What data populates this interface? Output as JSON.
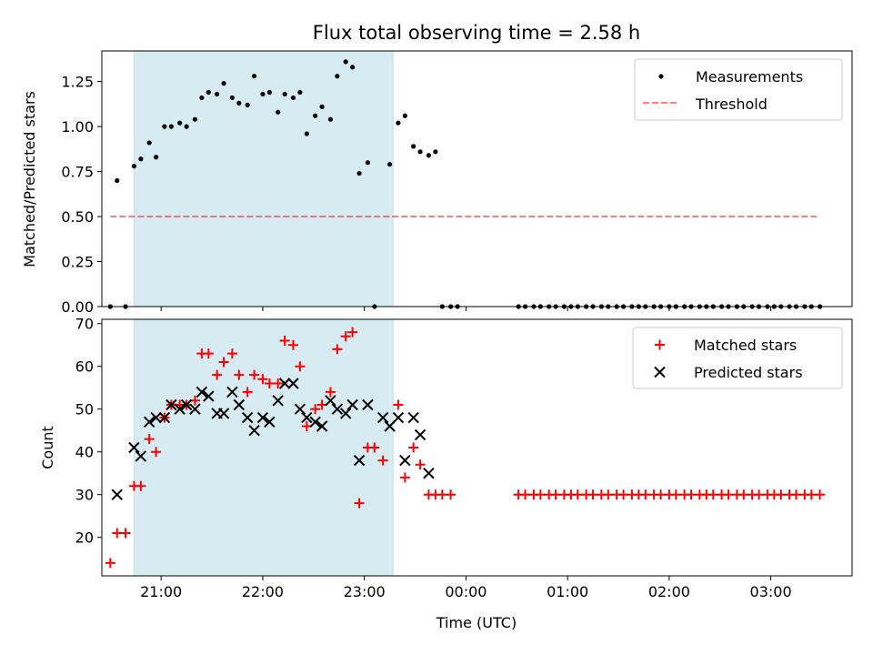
{
  "title": "Flux total observing time = 2.58 h",
  "colors": {
    "span": "#add8e6",
    "measurement": "#000000",
    "threshold": "#ff0000",
    "matched": "#ff0000",
    "predicted": "#000000"
  },
  "chart_data": [
    {
      "type": "scatter",
      "panel": "top",
      "ylabel": "Matched/Predicted stars",
      "xlabel": "",
      "ylim": [
        0,
        1.42
      ],
      "yticks": [
        0.0,
        0.25,
        0.5,
        0.75,
        1.0,
        1.25
      ],
      "ytick_labels": [
        "0.00",
        "0.25",
        "0.50",
        "0.75",
        "1.00",
        "1.25"
      ],
      "xlim": [
        "20:25",
        "27:48"
      ],
      "xticks": [
        "21:00",
        "22:00",
        "23:00",
        "24:00",
        "25:00",
        "26:00",
        "27:00"
      ],
      "shaded_span": {
        "start": "20:44",
        "end": "23:17"
      },
      "legend": {
        "position": "upper right",
        "entries": [
          "Measurements",
          "Threshold"
        ]
      },
      "series": [
        {
          "name": "Measurements",
          "marker": "dot",
          "points": [
            [
              "20:30",
              0.0
            ],
            [
              "20:39",
              0.0
            ],
            [
              "20:34",
              0.7
            ],
            [
              "20:44",
              0.78
            ],
            [
              "20:48",
              0.82
            ],
            [
              "20:53",
              0.91
            ],
            [
              "20:57",
              0.83
            ],
            [
              "21:02",
              1.0
            ],
            [
              "21:06",
              1.0
            ],
            [
              "21:11",
              1.02
            ],
            [
              "21:15",
              1.0
            ],
            [
              "21:20",
              1.04
            ],
            [
              "21:24",
              1.16
            ],
            [
              "21:28",
              1.19
            ],
            [
              "21:33",
              1.18
            ],
            [
              "21:37",
              1.24
            ],
            [
              "21:42",
              1.16
            ],
            [
              "21:46",
              1.13
            ],
            [
              "21:51",
              1.12
            ],
            [
              "21:55",
              1.28
            ],
            [
              "22:00",
              1.18
            ],
            [
              "22:04",
              1.19
            ],
            [
              "22:09",
              1.08
            ],
            [
              "22:13",
              1.18
            ],
            [
              "22:18",
              1.16
            ],
            [
              "22:22",
              1.19
            ],
            [
              "22:26",
              0.96
            ],
            [
              "22:31",
              1.06
            ],
            [
              "22:35",
              1.11
            ],
            [
              "22:40",
              1.04
            ],
            [
              "22:44",
              1.28
            ],
            [
              "22:49",
              1.36
            ],
            [
              "22:53",
              1.33
            ],
            [
              "22:57",
              0.74
            ],
            [
              "23:02",
              0.8
            ],
            [
              "23:06",
              0.0
            ],
            [
              "23:15",
              0.79
            ],
            [
              "23:20",
              1.02
            ],
            [
              "23:24",
              1.06
            ],
            [
              "23:29",
              0.89
            ],
            [
              "23:33",
              0.86
            ],
            [
              "23:38",
              0.84
            ],
            [
              "23:42",
              0.86
            ],
            [
              "23:46",
              0.0
            ],
            [
              "23:51",
              0.0
            ],
            [
              "23:55",
              0.0
            ],
            [
              "24:31",
              0.0
            ],
            [
              "24:35",
              0.0
            ],
            [
              "24:40",
              0.0
            ],
            [
              "24:44",
              0.0
            ],
            [
              "24:49",
              0.0
            ],
            [
              "24:53",
              0.0
            ],
            [
              "24:58",
              0.0
            ],
            [
              "25:02",
              0.0
            ],
            [
              "25:06",
              0.0
            ],
            [
              "25:11",
              0.0
            ],
            [
              "25:15",
              0.0
            ],
            [
              "25:20",
              0.0
            ],
            [
              "25:24",
              0.0
            ],
            [
              "25:29",
              0.0
            ],
            [
              "25:33",
              0.0
            ],
            [
              "25:38",
              0.0
            ],
            [
              "25:42",
              0.0
            ],
            [
              "25:46",
              0.0
            ],
            [
              "25:51",
              0.0
            ],
            [
              "25:55",
              0.0
            ],
            [
              "26:00",
              0.0
            ],
            [
              "26:04",
              0.0
            ],
            [
              "26:09",
              0.0
            ],
            [
              "26:13",
              0.0
            ],
            [
              "26:18",
              0.0
            ],
            [
              "26:22",
              0.0
            ],
            [
              "26:26",
              0.0
            ],
            [
              "26:31",
              0.0
            ],
            [
              "26:35",
              0.0
            ],
            [
              "26:40",
              0.0
            ],
            [
              "26:44",
              0.0
            ],
            [
              "26:49",
              0.0
            ],
            [
              "26:53",
              0.0
            ],
            [
              "26:58",
              0.0
            ],
            [
              "27:02",
              0.0
            ],
            [
              "27:06",
              0.0
            ],
            [
              "27:11",
              0.0
            ],
            [
              "27:15",
              0.0
            ],
            [
              "27:20",
              0.0
            ],
            [
              "27:24",
              0.0
            ],
            [
              "27:29",
              0.0
            ]
          ]
        },
        {
          "name": "Threshold",
          "marker": "dashed-line",
          "points": [
            [
              "20:30",
              0.5
            ],
            [
              "27:29",
              0.5
            ]
          ]
        }
      ]
    },
    {
      "type": "scatter",
      "panel": "bottom",
      "ylabel": "Count",
      "xlabel": "Time (UTC)",
      "ylim": [
        11,
        71
      ],
      "yticks": [
        20,
        30,
        40,
        50,
        60,
        70
      ],
      "ytick_labels": [
        "20",
        "30",
        "40",
        "50",
        "60",
        "70"
      ],
      "xlim": [
        "20:25",
        "27:48"
      ],
      "xticks": [
        "21:00",
        "22:00",
        "23:00",
        "24:00",
        "25:00",
        "26:00",
        "27:00"
      ],
      "xtick_labels": [
        "21:00",
        "22:00",
        "23:00",
        "00:00",
        "01:00",
        "02:00",
        "03:00"
      ],
      "shaded_span": {
        "start": "20:44",
        "end": "23:17"
      },
      "legend": {
        "position": "upper right",
        "entries": [
          "Matched stars",
          "Predicted stars"
        ]
      },
      "series": [
        {
          "name": "Matched stars",
          "marker": "plus",
          "points": [
            [
              "20:30",
              14
            ],
            [
              "20:34",
              21
            ],
            [
              "20:39",
              21
            ],
            [
              "20:44",
              32
            ],
            [
              "20:48",
              32
            ],
            [
              "20:53",
              43
            ],
            [
              "20:57",
              40
            ],
            [
              "21:02",
              48
            ],
            [
              "21:06",
              51
            ],
            [
              "21:11",
              51
            ],
            [
              "21:15",
              51
            ],
            [
              "21:20",
              52
            ],
            [
              "21:24",
              63
            ],
            [
              "21:28",
              63
            ],
            [
              "21:33",
              58
            ],
            [
              "21:37",
              61
            ],
            [
              "21:42",
              63
            ],
            [
              "21:46",
              58
            ],
            [
              "21:51",
              54
            ],
            [
              "21:55",
              58
            ],
            [
              "22:00",
              57
            ],
            [
              "22:04",
              56
            ],
            [
              "22:09",
              56
            ],
            [
              "22:13",
              66
            ],
            [
              "22:18",
              65
            ],
            [
              "22:22",
              60
            ],
            [
              "22:26",
              46
            ],
            [
              "22:31",
              50
            ],
            [
              "22:35",
              51
            ],
            [
              "22:40",
              54
            ],
            [
              "22:44",
              64
            ],
            [
              "22:49",
              67
            ],
            [
              "22:53",
              68
            ],
            [
              "22:57",
              28
            ],
            [
              "23:02",
              41
            ],
            [
              "23:06",
              41
            ],
            [
              "23:11",
              38
            ],
            [
              "23:20",
              51
            ],
            [
              "23:24",
              34
            ],
            [
              "23:29",
              41
            ],
            [
              "23:33",
              37
            ],
            [
              "23:38",
              30
            ],
            [
              "23:42",
              30
            ],
            [
              "23:46",
              30
            ],
            [
              "23:51",
              30
            ],
            [
              "24:31",
              30
            ],
            [
              "24:35",
              30
            ],
            [
              "24:40",
              30
            ],
            [
              "24:44",
              30
            ],
            [
              "24:49",
              30
            ],
            [
              "24:53",
              30
            ],
            [
              "24:58",
              30
            ],
            [
              "25:02",
              30
            ],
            [
              "25:06",
              30
            ],
            [
              "25:11",
              30
            ],
            [
              "25:15",
              30
            ],
            [
              "25:20",
              30
            ],
            [
              "25:24",
              30
            ],
            [
              "25:29",
              30
            ],
            [
              "25:33",
              30
            ],
            [
              "25:38",
              30
            ],
            [
              "25:42",
              30
            ],
            [
              "25:46",
              30
            ],
            [
              "25:51",
              30
            ],
            [
              "25:55",
              30
            ],
            [
              "26:00",
              30
            ],
            [
              "26:04",
              30
            ],
            [
              "26:09",
              30
            ],
            [
              "26:13",
              30
            ],
            [
              "26:18",
              30
            ],
            [
              "26:22",
              30
            ],
            [
              "26:26",
              30
            ],
            [
              "26:31",
              30
            ],
            [
              "26:35",
              30
            ],
            [
              "26:40",
              30
            ],
            [
              "26:44",
              30
            ],
            [
              "26:49",
              30
            ],
            [
              "26:53",
              30
            ],
            [
              "26:58",
              30
            ],
            [
              "27:02",
              30
            ],
            [
              "27:06",
              30
            ],
            [
              "27:11",
              30
            ],
            [
              "27:15",
              30
            ],
            [
              "27:20",
              30
            ],
            [
              "27:24",
              30
            ],
            [
              "27:29",
              30
            ]
          ]
        },
        {
          "name": "Predicted stars",
          "marker": "x",
          "points": [
            [
              "20:34",
              30
            ],
            [
              "20:44",
              41
            ],
            [
              "20:48",
              39
            ],
            [
              "20:53",
              47
            ],
            [
              "20:57",
              48
            ],
            [
              "21:02",
              48
            ],
            [
              "21:06",
              51
            ],
            [
              "21:11",
              50
            ],
            [
              "21:15",
              51
            ],
            [
              "21:20",
              50
            ],
            [
              "21:24",
              54
            ],
            [
              "21:28",
              53
            ],
            [
              "21:33",
              49
            ],
            [
              "21:37",
              49
            ],
            [
              "21:42",
              54
            ],
            [
              "21:46",
              51
            ],
            [
              "21:51",
              48
            ],
            [
              "21:55",
              45
            ],
            [
              "22:00",
              48
            ],
            [
              "22:04",
              47
            ],
            [
              "22:09",
              52
            ],
            [
              "22:13",
              56
            ],
            [
              "22:18",
              56
            ],
            [
              "22:22",
              50
            ],
            [
              "22:26",
              48
            ],
            [
              "22:31",
              47
            ],
            [
              "22:35",
              46
            ],
            [
              "22:40",
              52
            ],
            [
              "22:44",
              50
            ],
            [
              "22:49",
              49
            ],
            [
              "22:53",
              51
            ],
            [
              "22:57",
              38
            ],
            [
              "23:02",
              51
            ],
            [
              "23:11",
              48
            ],
            [
              "23:15",
              46
            ],
            [
              "23:20",
              48
            ],
            [
              "23:24",
              38
            ],
            [
              "23:29",
              48
            ],
            [
              "23:33",
              44
            ],
            [
              "23:38",
              35
            ]
          ]
        }
      ]
    }
  ]
}
